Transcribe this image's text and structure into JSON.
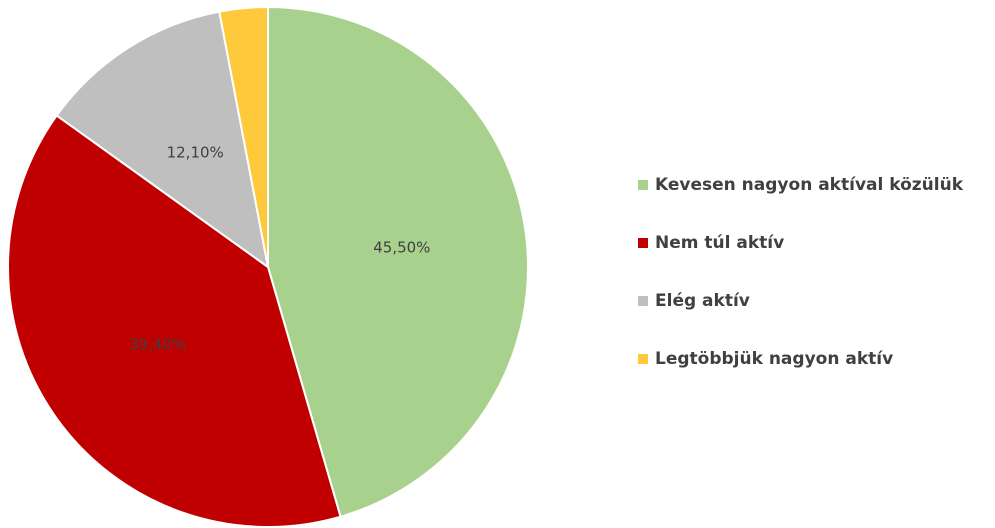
{
  "chart_data": {
    "type": "pie",
    "categories": [
      "Kevesen nagyon aktíval közülük",
      "Nem túl aktív",
      "Elég aktív",
      "Legtöbbjük nagyon aktív"
    ],
    "values": [
      45.5,
      39.4,
      12.1,
      3.0
    ],
    "value_labels": [
      "45,50%",
      "39,40%",
      "12,10%",
      null
    ],
    "colors": [
      "#a9d18e",
      "#c00000",
      "#bfbfbf",
      "#ffc93c"
    ],
    "legend": "right"
  }
}
